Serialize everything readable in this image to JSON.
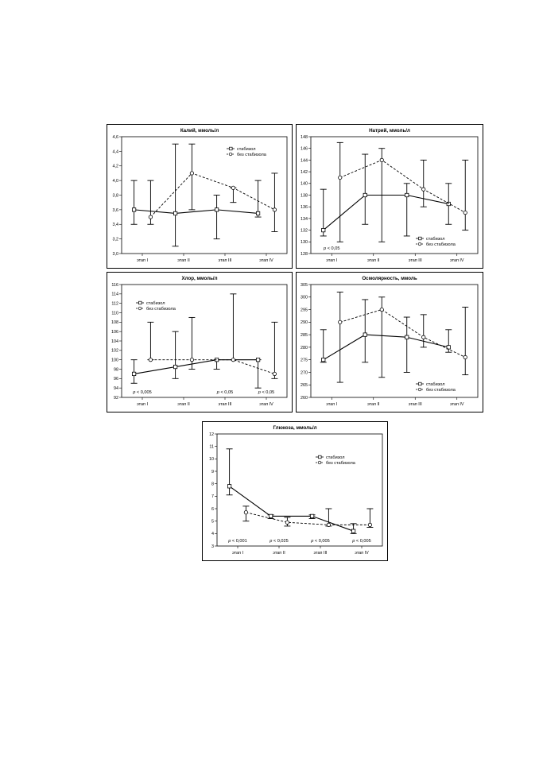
{
  "chart_data": [
    {
      "type": "line",
      "title": "Калий, ммоль/л",
      "categories": [
        "этап I",
        "этап II",
        "этап III",
        "этап IV"
      ],
      "ylim": [
        3.0,
        4.6
      ],
      "yticks": [
        "3,0",
        "3,2",
        "3,4",
        "3,6",
        "3,8",
        "4,0",
        "4,2",
        "4,4",
        "4,6"
      ],
      "legend_position": "top-right",
      "series": [
        {
          "name": "стабизол",
          "marker": "square",
          "dash": "solid",
          "values": [
            3.6,
            3.55,
            3.6,
            3.55
          ],
          "low": [
            3.4,
            3.1,
            3.2,
            3.5
          ],
          "high": [
            4.0,
            4.5,
            3.8,
            4.0
          ]
        },
        {
          "name": "без стабизола",
          "marker": "circle",
          "dash": "dashed",
          "values": [
            3.5,
            4.1,
            3.9,
            3.6
          ],
          "low": [
            3.4,
            3.6,
            3.7,
            3.3
          ],
          "high": [
            4.0,
            4.5,
            3.9,
            4.1
          ]
        }
      ],
      "annotations": []
    },
    {
      "type": "line",
      "title": "Натрий, ммоль/л",
      "categories": [
        "этап I",
        "этап II",
        "этап III",
        "этап IV"
      ],
      "ylim": [
        128,
        148
      ],
      "yticks": [
        "128",
        "130",
        "132",
        "134",
        "136",
        "138",
        "140",
        "142",
        "144",
        "146",
        "148"
      ],
      "legend_position": "bottom-right",
      "series": [
        {
          "name": "стабизол",
          "marker": "square",
          "dash": "solid",
          "values": [
            132,
            138,
            138,
            136.5
          ],
          "low": [
            131,
            133,
            131,
            133
          ],
          "high": [
            139,
            145,
            140,
            140
          ]
        },
        {
          "name": "без стабизола",
          "marker": "circle",
          "dash": "dashed",
          "values": [
            141,
            144,
            139,
            135
          ],
          "low": [
            130,
            130,
            136,
            132
          ],
          "high": [
            147,
            146,
            144,
            144
          ]
        }
      ],
      "annotations": [
        {
          "category": "этап I",
          "p": "p",
          "text": " < 0,05"
        }
      ]
    },
    {
      "type": "line",
      "title": "Хлор, ммоль/л",
      "categories": [
        "этап I",
        "этап II",
        "этап III",
        "этап IV"
      ],
      "ylim": [
        92,
        116
      ],
      "yticks": [
        "92",
        "94",
        "96",
        "98",
        "100",
        "102",
        "104",
        "106",
        "108",
        "110",
        "112",
        "114",
        "116"
      ],
      "legend_position": "top-left",
      "series": [
        {
          "name": "стабизол",
          "marker": "square",
          "dash": "solid",
          "values": [
            97,
            98.5,
            100,
            100
          ],
          "low": [
            95,
            96,
            98,
            94
          ],
          "high": [
            100,
            106,
            100,
            100
          ]
        },
        {
          "name": "без стабизола",
          "marker": "circle",
          "dash": "dashed",
          "values": [
            100,
            100,
            100,
            97
          ],
          "low": [
            100,
            98,
            100,
            96
          ],
          "high": [
            108,
            109,
            114,
            108
          ]
        }
      ],
      "annotations": [
        {
          "category": "этап I",
          "p": "p",
          "text": " < 0,005"
        },
        {
          "category": "этап III",
          "p": "p",
          "text": " < 0,05"
        },
        {
          "category": "этап IV",
          "p": "p",
          "text": " < 0,05"
        }
      ]
    },
    {
      "type": "line",
      "title": "Осмолярность, ммоль",
      "categories": [
        "этап I",
        "этап II",
        "этап III",
        "этап IV"
      ],
      "ylim": [
        260,
        305
      ],
      "yticks": [
        "260",
        "265",
        "270",
        "275",
        "280",
        "285",
        "290",
        "295",
        "300",
        "305"
      ],
      "legend_position": "bottom-right",
      "series": [
        {
          "name": "стабизол",
          "marker": "square",
          "dash": "solid",
          "values": [
            275,
            285,
            284,
            280
          ],
          "low": [
            274,
            274,
            270,
            278
          ],
          "high": [
            287,
            299,
            292,
            287
          ]
        },
        {
          "name": "без стабизола",
          "marker": "circle",
          "dash": "dashed",
          "values": [
            290,
            295,
            284,
            276
          ],
          "low": [
            266,
            268,
            280,
            269
          ],
          "high": [
            302,
            300,
            293,
            296
          ]
        }
      ],
      "annotations": []
    },
    {
      "type": "line",
      "title": "Глюкоза, ммоль/л",
      "categories": [
        "этап I",
        "этап II",
        "этап III",
        "этап IV"
      ],
      "ylim": [
        3,
        12
      ],
      "yticks": [
        "3",
        "4",
        "5",
        "6",
        "7",
        "8",
        "9",
        "10",
        "11",
        "12"
      ],
      "legend_position": "top-right",
      "series": [
        {
          "name": "стабизол",
          "marker": "square",
          "dash": "solid",
          "values": [
            7.8,
            5.4,
            5.4,
            4.2
          ],
          "low": [
            7.1,
            5.2,
            5.2,
            4.0
          ],
          "high": [
            10.8,
            5.5,
            5.5,
            4.8
          ]
        },
        {
          "name": "без стабизола",
          "marker": "circle",
          "dash": "dashed",
          "values": [
            5.7,
            4.9,
            4.7,
            4.7
          ],
          "low": [
            5.0,
            4.6,
            4.6,
            4.5
          ],
          "high": [
            6.2,
            5.3,
            6.0,
            6.0
          ]
        }
      ],
      "annotations": [
        {
          "category": "этап I",
          "p": "p",
          "text": " < 0,001"
        },
        {
          "category": "этап II",
          "p": "p",
          "text": " < 0,025"
        },
        {
          "category": "этап III",
          "p": "p",
          "text": " < 0,005"
        },
        {
          "category": "этап IV",
          "p": "p",
          "text": " < 0,005"
        }
      ]
    }
  ]
}
